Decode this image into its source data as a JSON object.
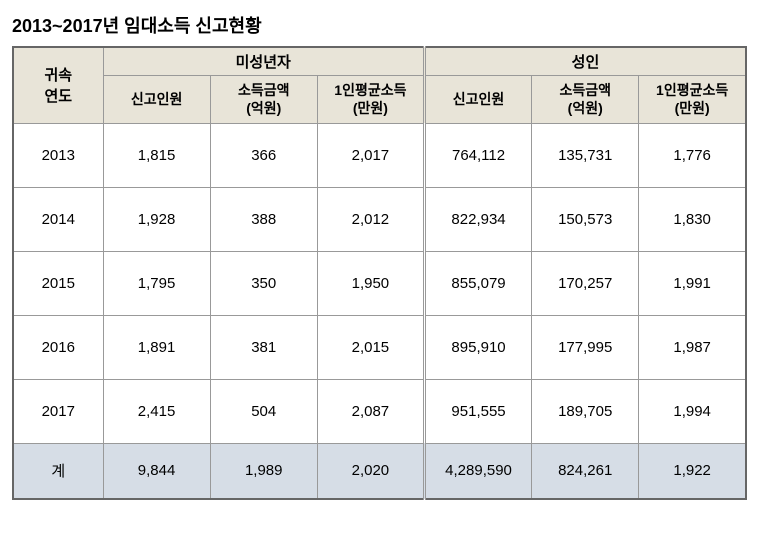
{
  "title": "2013~2017년 임대소득 신고현황",
  "headers": {
    "year": "귀속\n연도",
    "group1": "미성년자",
    "group2": "성인",
    "sub": {
      "count": "신고인원",
      "amount": "소득금액\n(억원)",
      "avg": "1인평균소득\n(만원)"
    }
  },
  "rows": [
    {
      "year": "2013",
      "m_count": "1,815",
      "m_amount": "366",
      "m_avg": "2,017",
      "a_count": "764,112",
      "a_amount": "135,731",
      "a_avg": "1,776"
    },
    {
      "year": "2014",
      "m_count": "1,928",
      "m_amount": "388",
      "m_avg": "2,012",
      "a_count": "822,934",
      "a_amount": "150,573",
      "a_avg": "1,830"
    },
    {
      "year": "2015",
      "m_count": "1,795",
      "m_amount": "350",
      "m_avg": "1,950",
      "a_count": "855,079",
      "a_amount": "170,257",
      "a_avg": "1,991"
    },
    {
      "year": "2016",
      "m_count": "1,891",
      "m_amount": "381",
      "m_avg": "2,015",
      "a_count": "895,910",
      "a_amount": "177,995",
      "a_avg": "1,987"
    },
    {
      "year": "2017",
      "m_count": "2,415",
      "m_amount": "504",
      "m_avg": "2,087",
      "a_count": "951,555",
      "a_amount": "189,705",
      "a_avg": "1,994"
    }
  ],
  "total": {
    "year": "계",
    "m_count": "9,844",
    "m_amount": "1,989",
    "m_avg": "2,020",
    "a_count": "4,289,590",
    "a_amount": "824,261",
    "a_avg": "1,922"
  },
  "colors": {
    "header_bg": "#e8e4d8",
    "total_bg": "#d6dde6",
    "border": "#999999",
    "text": "#000000"
  }
}
